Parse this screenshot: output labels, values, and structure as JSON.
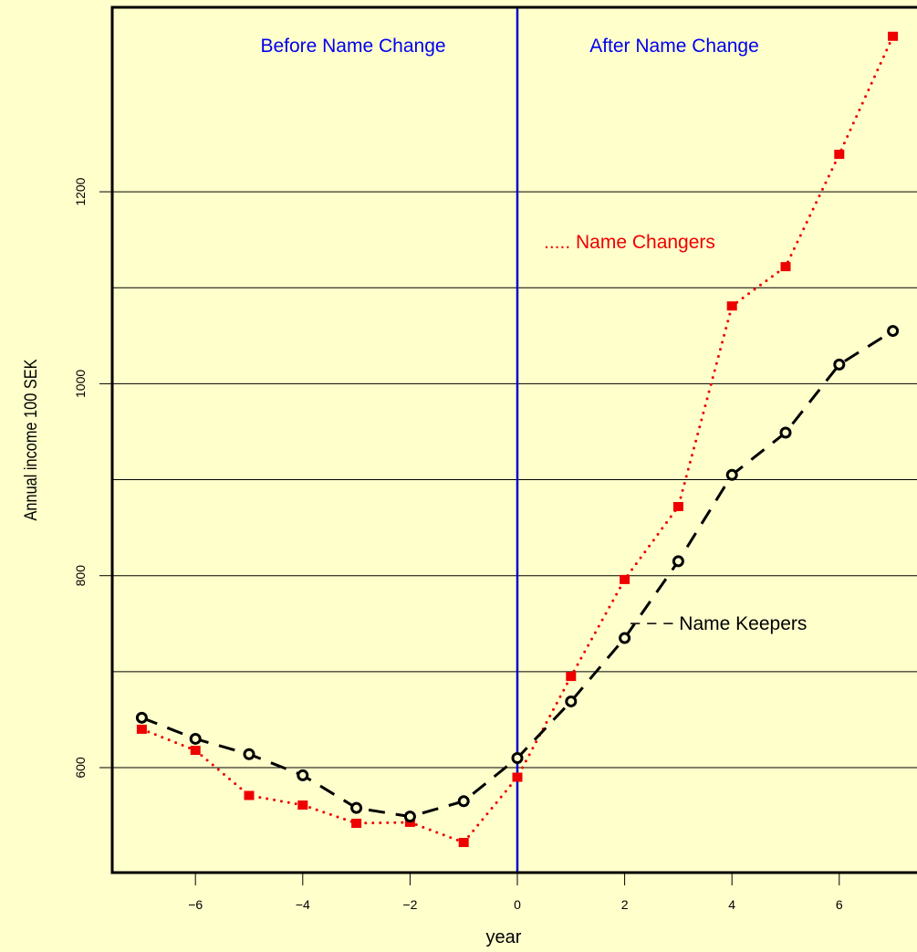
{
  "chart_data": {
    "type": "line",
    "xlabel": "year",
    "ylabel": "Annual income 100 SEK",
    "xlim": [
      -7.5,
      7.5
    ],
    "ylim": [
      500,
      1380
    ],
    "xticks": [
      -6,
      -4,
      -2,
      0,
      2,
      4,
      6
    ],
    "xtick_labels": [
      "−6",
      "−4",
      "−2",
      "0",
      "2",
      "4",
      "6"
    ],
    "yticks": [
      600,
      800,
      1000,
      1200
    ],
    "ygrid": [
      600,
      700,
      800,
      900,
      1000,
      1100,
      1200
    ],
    "grid": "horizontal",
    "vline_x": 0,
    "annotations": {
      "before": "Before Name Change",
      "after": "After Name Change"
    },
    "series": [
      {
        "name": "Name Changers",
        "legend_text": "..... Name Changers",
        "color": "#ee0000",
        "line": "dotted",
        "marker": "filled-square",
        "x": [
          -7,
          -6,
          -5,
          -4,
          -3,
          -2,
          -1,
          0,
          1,
          2,
          3,
          4,
          5,
          6,
          7
        ],
        "values": [
          640,
          618,
          571,
          561,
          542,
          543,
          522,
          590,
          695,
          796,
          872,
          1081,
          1122,
          1239,
          1362
        ]
      },
      {
        "name": "Name Keepers",
        "legend_text": "− − − Name Keepers",
        "color": "#000000",
        "line": "dashed",
        "marker": "open-circle",
        "x": [
          -7,
          -6,
          -5,
          -4,
          -3,
          -2,
          -1,
          0,
          1,
          2,
          3,
          4,
          5,
          6,
          7
        ],
        "values": [
          652,
          630,
          614,
          592,
          558,
          549,
          565,
          610,
          669,
          735,
          815,
          905,
          949,
          1020,
          1055
        ]
      }
    ]
  }
}
